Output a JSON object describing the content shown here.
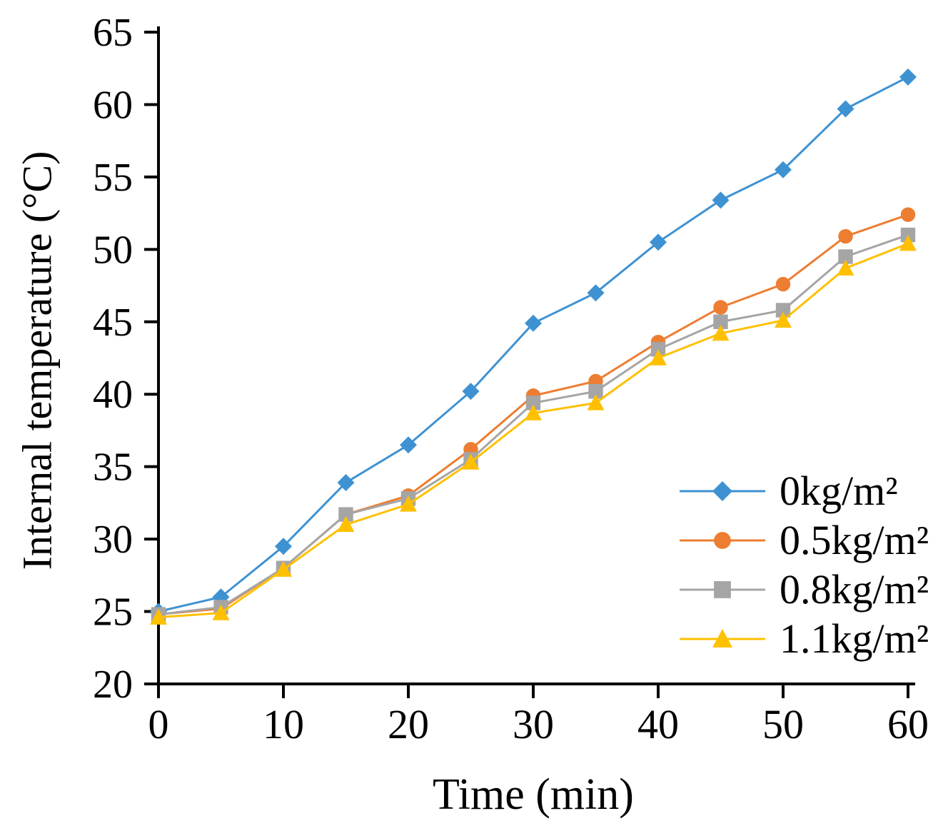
{
  "chart_data": {
    "type": "line",
    "title": "",
    "xlabel": "Time (min)",
    "ylabel": "Internal temperature (°C)",
    "xlim": [
      0,
      60
    ],
    "ylim": [
      20,
      65
    ],
    "xticks": [
      0,
      10,
      20,
      30,
      40,
      50,
      60
    ],
    "yticks": [
      20,
      25,
      30,
      35,
      40,
      45,
      50,
      55,
      60,
      65
    ],
    "grid": false,
    "legend_position": "lower-right",
    "x": [
      0,
      5,
      10,
      15,
      20,
      25,
      30,
      35,
      40,
      45,
      50,
      55,
      60
    ],
    "series": [
      {
        "name": "0kg/m²",
        "color": "#3E92D2",
        "marker": "diamond",
        "values": [
          25.0,
          26.0,
          29.5,
          33.9,
          36.5,
          40.2,
          44.9,
          47.0,
          50.5,
          53.4,
          55.5,
          59.7,
          61.9
        ]
      },
      {
        "name": "0.5kg/m²",
        "color": "#ED7D31",
        "marker": "circle",
        "values": [
          24.8,
          25.2,
          28.0,
          31.7,
          33.0,
          36.2,
          39.9,
          40.9,
          43.6,
          46.0,
          47.6,
          50.9,
          52.4
        ]
      },
      {
        "name": "0.8kg/m²",
        "color": "#A5A5A5",
        "marker": "square",
        "values": [
          24.8,
          25.3,
          28.0,
          31.7,
          32.8,
          35.5,
          39.4,
          40.2,
          43.1,
          45.0,
          45.8,
          49.5,
          51.0
        ]
      },
      {
        "name": "1.1kg/m²",
        "color": "#FFC000",
        "marker": "triangle",
        "values": [
          24.6,
          24.9,
          27.9,
          31.0,
          32.4,
          35.3,
          38.7,
          39.4,
          42.5,
          44.2,
          45.1,
          48.7,
          50.4
        ]
      }
    ]
  }
}
